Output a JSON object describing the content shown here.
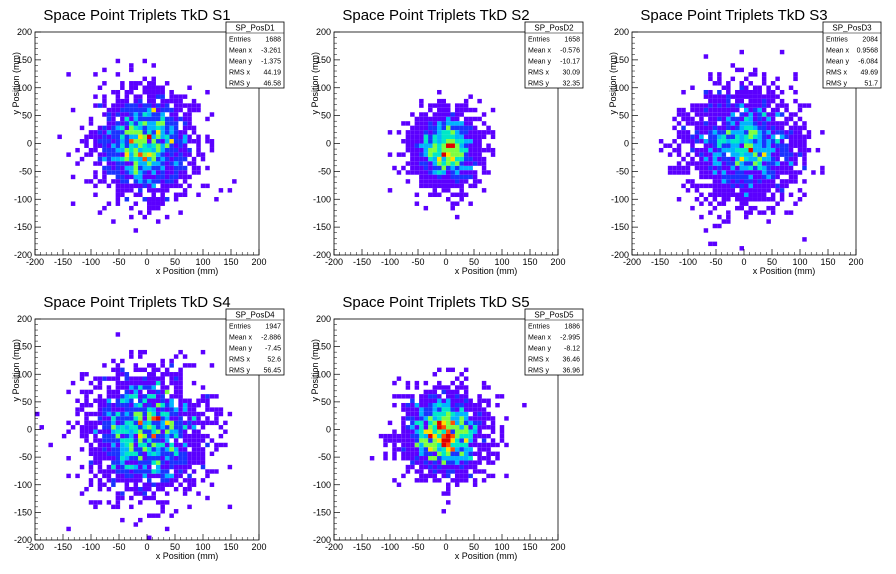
{
  "chart_data": [
    {
      "type": "heatmap",
      "title": "Space Point Triplets TkD S1",
      "xlabel": "x Position (mm)",
      "ylabel": "y Position (mm)",
      "xlim": [
        -200,
        200
      ],
      "ylim": [
        -200,
        200
      ],
      "xticks": [
        "-200",
        "-150",
        "-100",
        "-50",
        "0",
        "50",
        "100",
        "150",
        "200"
      ],
      "yticks": [
        "-200",
        "-150",
        "-100",
        "-50",
        "0",
        "50",
        "100",
        "150",
        "200"
      ],
      "stats": {
        "name": "SP_PosD1",
        "rows": [
          [
            "Entries",
            "1688"
          ],
          [
            "Mean x",
            "-3.261"
          ],
          [
            "Mean y",
            "-1.375"
          ],
          [
            "RMS x",
            "44.19"
          ],
          [
            "RMS y",
            "46.58"
          ]
        ]
      },
      "distribution": {
        "center": [
          -3.261,
          -1.375
        ],
        "rms": [
          44.19,
          46.58
        ],
        "entries": 1688
      }
    },
    {
      "type": "heatmap",
      "title": "Space Point Triplets TkD S2",
      "xlabel": "x Position (mm)",
      "ylabel": "y Position (mm)",
      "xlim": [
        -200,
        200
      ],
      "ylim": [
        -200,
        200
      ],
      "xticks": [
        "-200",
        "-150",
        "-100",
        "-50",
        "0",
        "50",
        "100",
        "150",
        "200"
      ],
      "yticks": [
        "-200",
        "-150",
        "-100",
        "-50",
        "0",
        "50",
        "100",
        "150",
        "200"
      ],
      "stats": {
        "name": "SP_PosD2",
        "rows": [
          [
            "Entries",
            "1658"
          ],
          [
            "Mean x",
            "-0.576"
          ],
          [
            "Mean y",
            "-10.17"
          ],
          [
            "RMS x",
            "30.09"
          ],
          [
            "RMS y",
            "32.35"
          ]
        ]
      },
      "distribution": {
        "center": [
          -0.576,
          -10.17
        ],
        "rms": [
          30.09,
          32.35
        ],
        "entries": 1658
      }
    },
    {
      "type": "heatmap",
      "title": "Space Point Triplets TkD S3",
      "xlabel": "x Position (mm)",
      "ylabel": "y Position (mm)",
      "xlim": [
        -200,
        200
      ],
      "ylim": [
        -200,
        200
      ],
      "xticks": [
        "-200",
        "-150",
        "-100",
        "-50",
        "0",
        "50",
        "100",
        "150",
        "200"
      ],
      "yticks": [
        "-200",
        "-150",
        "-100",
        "-50",
        "0",
        "50",
        "100",
        "150",
        "200"
      ],
      "stats": {
        "name": "SP_PosD3",
        "rows": [
          [
            "Entries",
            "2084"
          ],
          [
            "Mean x",
            "0.9568"
          ],
          [
            "Mean y",
            "-6.084"
          ],
          [
            "RMS x",
            "49.69"
          ],
          [
            "RMS y",
            "51.7"
          ]
        ]
      },
      "distribution": {
        "center": [
          0.9568,
          -6.084
        ],
        "rms": [
          49.69,
          51.7
        ],
        "entries": 2084
      }
    },
    {
      "type": "heatmap",
      "title": "Space Point Triplets TkD S4",
      "xlabel": "x Position (mm)",
      "ylabel": "y Position (mm)",
      "xlim": [
        -200,
        200
      ],
      "ylim": [
        -200,
        200
      ],
      "xticks": [
        "-200",
        "-150",
        "-100",
        "-50",
        "0",
        "50",
        "100",
        "150",
        "200"
      ],
      "yticks": [
        "-200",
        "-150",
        "-100",
        "-50",
        "0",
        "50",
        "100",
        "150",
        "200"
      ],
      "stats": {
        "name": "SP_PosD4",
        "rows": [
          [
            "Entries",
            "1947"
          ],
          [
            "Mean x",
            "-2.886"
          ],
          [
            "Mean y",
            "-7.45"
          ],
          [
            "RMS x",
            "52.6"
          ],
          [
            "RMS y",
            "56.45"
          ]
        ]
      },
      "distribution": {
        "center": [
          -2.886,
          -7.45
        ],
        "rms": [
          52.6,
          56.45
        ],
        "entries": 1947
      }
    },
    {
      "type": "heatmap",
      "title": "Space Point Triplets TkD S5",
      "xlabel": "x Position (mm)",
      "ylabel": "y Position (mm)",
      "xlim": [
        -200,
        200
      ],
      "ylim": [
        -200,
        200
      ],
      "xticks": [
        "-200",
        "-150",
        "-100",
        "-50",
        "0",
        "50",
        "100",
        "150",
        "200"
      ],
      "yticks": [
        "-200",
        "-150",
        "-100",
        "-50",
        "0",
        "50",
        "100",
        "150",
        "200"
      ],
      "stats": {
        "name": "SP_PosD5",
        "rows": [
          [
            "Entries",
            "1886"
          ],
          [
            "Mean x",
            "-2.995"
          ],
          [
            "Mean y",
            "-8.12"
          ],
          [
            "RMS x",
            "36.46"
          ],
          [
            "RMS y",
            "36.96"
          ]
        ]
      },
      "distribution": {
        "center": [
          -2.995,
          -8.12
        ],
        "rms": [
          36.46,
          36.96
        ],
        "entries": 1886
      }
    }
  ],
  "colors": {
    "palette": [
      "#5b00ff",
      "#1a33ff",
      "#00b4ff",
      "#00e8c8",
      "#7dff40",
      "#ffe000",
      "#ff5000",
      "#e00000"
    ]
  }
}
